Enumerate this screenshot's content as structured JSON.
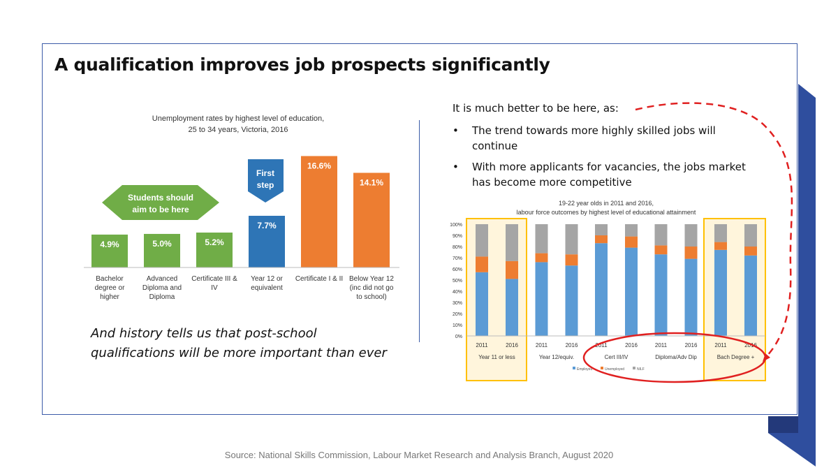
{
  "slide": {
    "title": "A qualification improves job prospects significantly",
    "history_lines": [
      "And history tells us that post-school",
      "qualifications will be more important than ever"
    ],
    "intro": "It is much better to be here, as:",
    "bullets": [
      "The trend towards more highly skilled jobs will continue",
      "With more applicants for vacancies, the jobs market has become more competitive"
    ],
    "bullet_symbol": "•",
    "source": "Source: National Skills Commission, Labour Market Research and Analysis Branch, August 2020"
  },
  "chart_data": [
    {
      "type": "bar",
      "title": "Unemployment rates by highest level of education,",
      "subtitle": "25 to 34 years, Victoria, 2016",
      "categories": [
        [
          "Bachelor",
          "degree or",
          "higher"
        ],
        [
          "Advanced",
          "Diploma and",
          "Diploma"
        ],
        [
          "Certificate III &",
          "IV"
        ],
        [
          "Year 12 or",
          "equivalent"
        ],
        [
          "Certificate I & II"
        ],
        [
          "Below Year 12",
          "(inc did not go",
          "to school)"
        ]
      ],
      "values": [
        4.9,
        5.0,
        5.2,
        7.7,
        16.6,
        14.1
      ],
      "value_labels": [
        "4.9%",
        "5.0%",
        "5.2%",
        "7.7%",
        "16.6%",
        "14.1%"
      ],
      "colors": [
        "#70ad47",
        "#70ad47",
        "#70ad47",
        "#2e75b6",
        "#ed7d31",
        "#ed7d31"
      ],
      "annotations": {
        "arrow_label": [
          "Students should",
          "aim to be here"
        ],
        "first_step": [
          "First",
          "step"
        ]
      },
      "ylim": [
        0,
        18
      ],
      "grid": false,
      "legend": "none"
    },
    {
      "type": "bar",
      "stacked": true,
      "title": "19-22 year olds in 2011 and 2016,",
      "subtitle": "labour force outcomes by highest level of educational attainment",
      "groups": [
        "Year 11 or less",
        "Year 12/equiv.",
        "Cert III/IV",
        "Diploma/Adv Dip",
        "Bach Degree +"
      ],
      "x": [
        "2011",
        "2016",
        "2011",
        "2016",
        "2011",
        "2016",
        "2011",
        "2016",
        "2011",
        "2016"
      ],
      "series": [
        {
          "name": "Employed",
          "color": "#5b9bd5",
          "values": [
            57,
            51,
            66,
            63,
            83,
            79,
            73,
            69,
            77,
            72
          ]
        },
        {
          "name": "Unemployed",
          "color": "#ed7d31",
          "values": [
            14,
            16,
            8,
            10,
            7,
            10,
            8,
            11,
            7,
            8
          ]
        },
        {
          "name": "NILF",
          "color": "#a5a5a5",
          "values": [
            29,
            33,
            26,
            27,
            10,
            11,
            19,
            20,
            16,
            20
          ]
        }
      ],
      "yticks": [
        "0%",
        "10%",
        "20%",
        "30%",
        "40%",
        "50%",
        "60%",
        "70%",
        "80%",
        "90%",
        "100%"
      ],
      "ylim": [
        0,
        100
      ],
      "grid": false,
      "legend": "bottom",
      "highlight_color": "#ffc000",
      "circle_color": "#e02020"
    }
  ]
}
